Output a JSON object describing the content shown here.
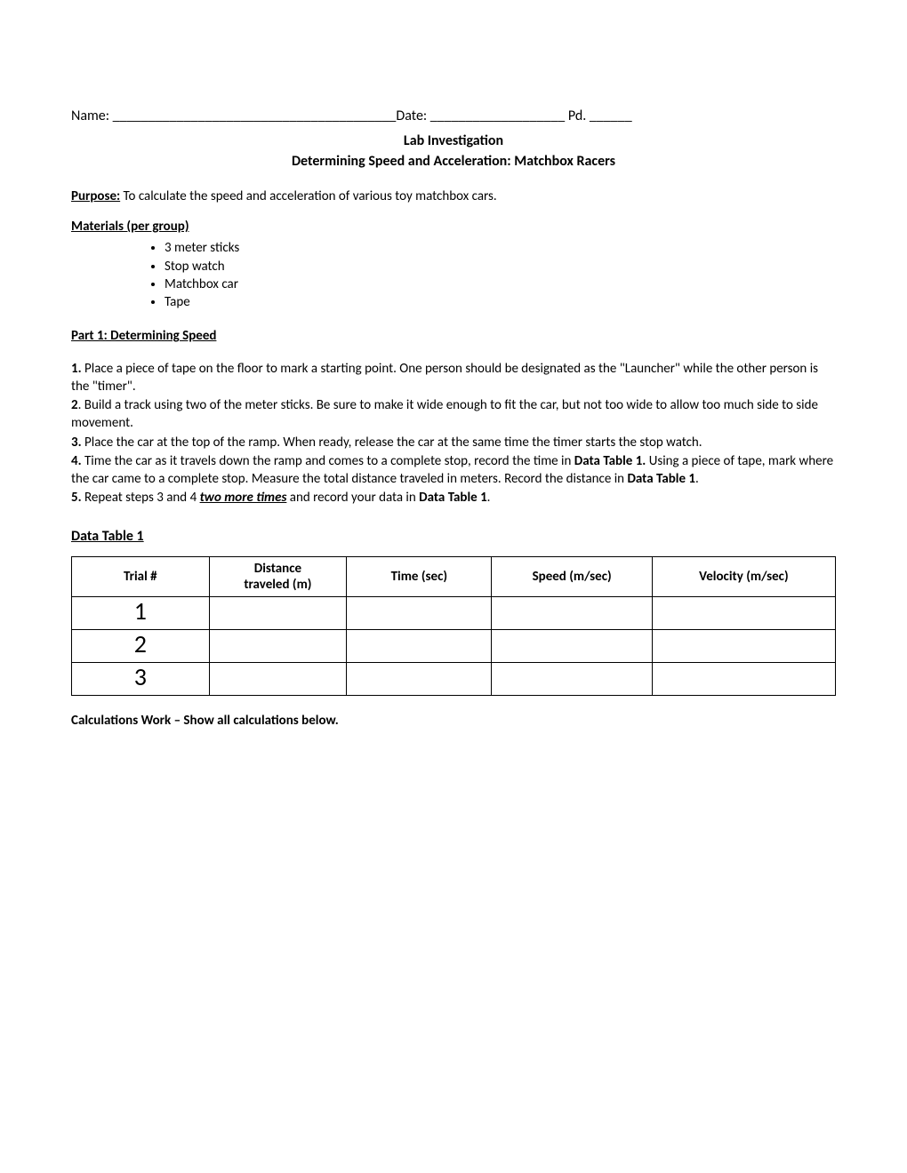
{
  "header": {
    "name_label": "Name:",
    "name_blank": " ________________________________________",
    "date_label": "Date:",
    "date_blank": " ___________________",
    "pd_label": " Pd.",
    "pd_blank": " ______"
  },
  "titles": {
    "t1": "Lab Investigation",
    "t2": "Determining Speed and Acceleration: Matchbox Racers"
  },
  "purpose": {
    "label": "Purpose:",
    "text": " To calculate the speed and acceleration of various toy matchbox cars."
  },
  "materials": {
    "label": "Materials (per group)",
    "items": [
      "3 meter sticks",
      "Stop watch",
      "Matchbox car",
      "Tape"
    ]
  },
  "part1": {
    "label": "Part 1:  Determining Speed",
    "steps": {
      "s1a": "1.",
      "s1b": "  Place a piece of tape on the floor to mark a starting point.  One person should be designated as the \"Launcher\" while the other person is the \"timer\".",
      "s2a": "2",
      "s2b": ".  Build a track using two of the meter sticks.  Be sure to make it wide enough to fit the car, but not too wide to allow too much side to side movement.",
      "s3a": "3.",
      "s3b": "  Place the car at the top of the ramp.  When ready, release the car at the same time the timer starts the stop watch.",
      "s4a": "4.",
      "s4b": "  Time the car as it travels down the ramp and comes to a complete stop, record the time in ",
      "s4c": "Data Table 1.",
      "s4d": "  Using a piece of tape, mark where the car came to a complete stop.  Measure the total distance traveled in meters.  Record the distance in ",
      "s4e": "Data Table 1",
      "s4f": ".",
      "s5a": "5.",
      "s5b": "  Repeat steps 3 and 4 ",
      "s5c": "two more times",
      "s5d": " and record your data in ",
      "s5e": "Data Table 1",
      "s5f": "."
    }
  },
  "datatable": {
    "heading": "Data Table 1",
    "cols": {
      "c1": "Trial #",
      "c2a": "Distance",
      "c2b": "traveled (m)",
      "c3": "Time (sec)",
      "c4": "Speed (m/sec)",
      "c5": "Velocity (m/sec)"
    },
    "rows": [
      "1",
      "2",
      "3"
    ]
  },
  "calc": {
    "label": "Calculations Work – Show all calculations below."
  },
  "style": {
    "col_widths": [
      "18%",
      "18%",
      "19%",
      "21%",
      "24%"
    ]
  }
}
